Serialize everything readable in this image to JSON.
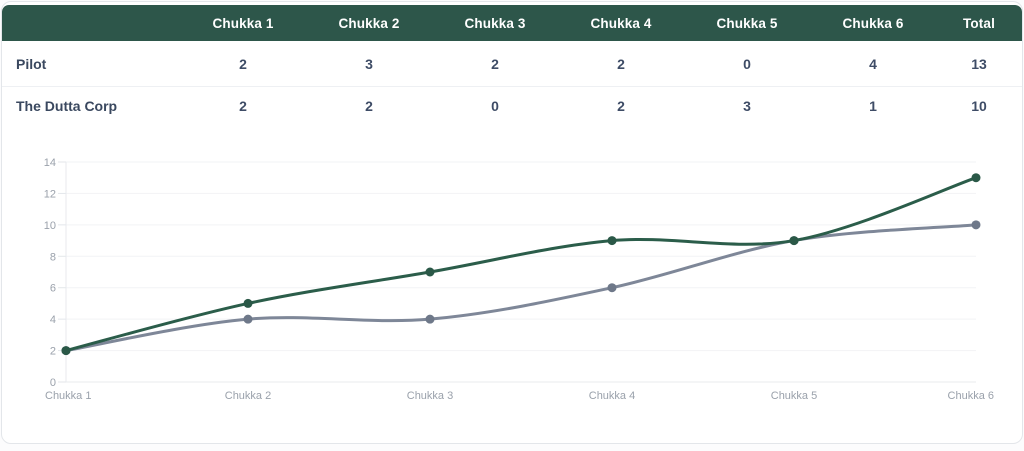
{
  "scoreboard": {
    "columns": [
      "Chukka 1",
      "Chukka 2",
      "Chukka 3",
      "Chukka 4",
      "Chukka 5",
      "Chukka 6",
      "Total"
    ],
    "rows": [
      {
        "team": "Pilot",
        "values": [
          2,
          3,
          2,
          2,
          0,
          4
        ],
        "total": 13
      },
      {
        "team": "The Dutta Corp",
        "values": [
          2,
          2,
          0,
          2,
          3,
          1
        ],
        "total": 10
      }
    ],
    "header_bg": "#2d564a",
    "row_text_color": "#3e4c66"
  },
  "chart_data": {
    "type": "line",
    "x": [
      "Chukka 1",
      "Chukka 2",
      "Chukka 3",
      "Chukka 4",
      "Chukka 5",
      "Chukka 6"
    ],
    "series": [
      {
        "name": "Pilot",
        "values": [
          2,
          5,
          7,
          9,
          9,
          13
        ],
        "color": "#2b5d4a",
        "point_color": "#2a5847"
      },
      {
        "name": "The Dutta Corp",
        "values": [
          2,
          4,
          4,
          6,
          9,
          10
        ],
        "color": "#7e8798",
        "point_color": "#6e7889"
      }
    ],
    "y_ticks": [
      0,
      2,
      4,
      6,
      8,
      10,
      12,
      14
    ],
    "ylim": [
      0,
      14
    ],
    "grid": true,
    "legend": "none",
    "tick_text_color": "#9aa1ab"
  }
}
